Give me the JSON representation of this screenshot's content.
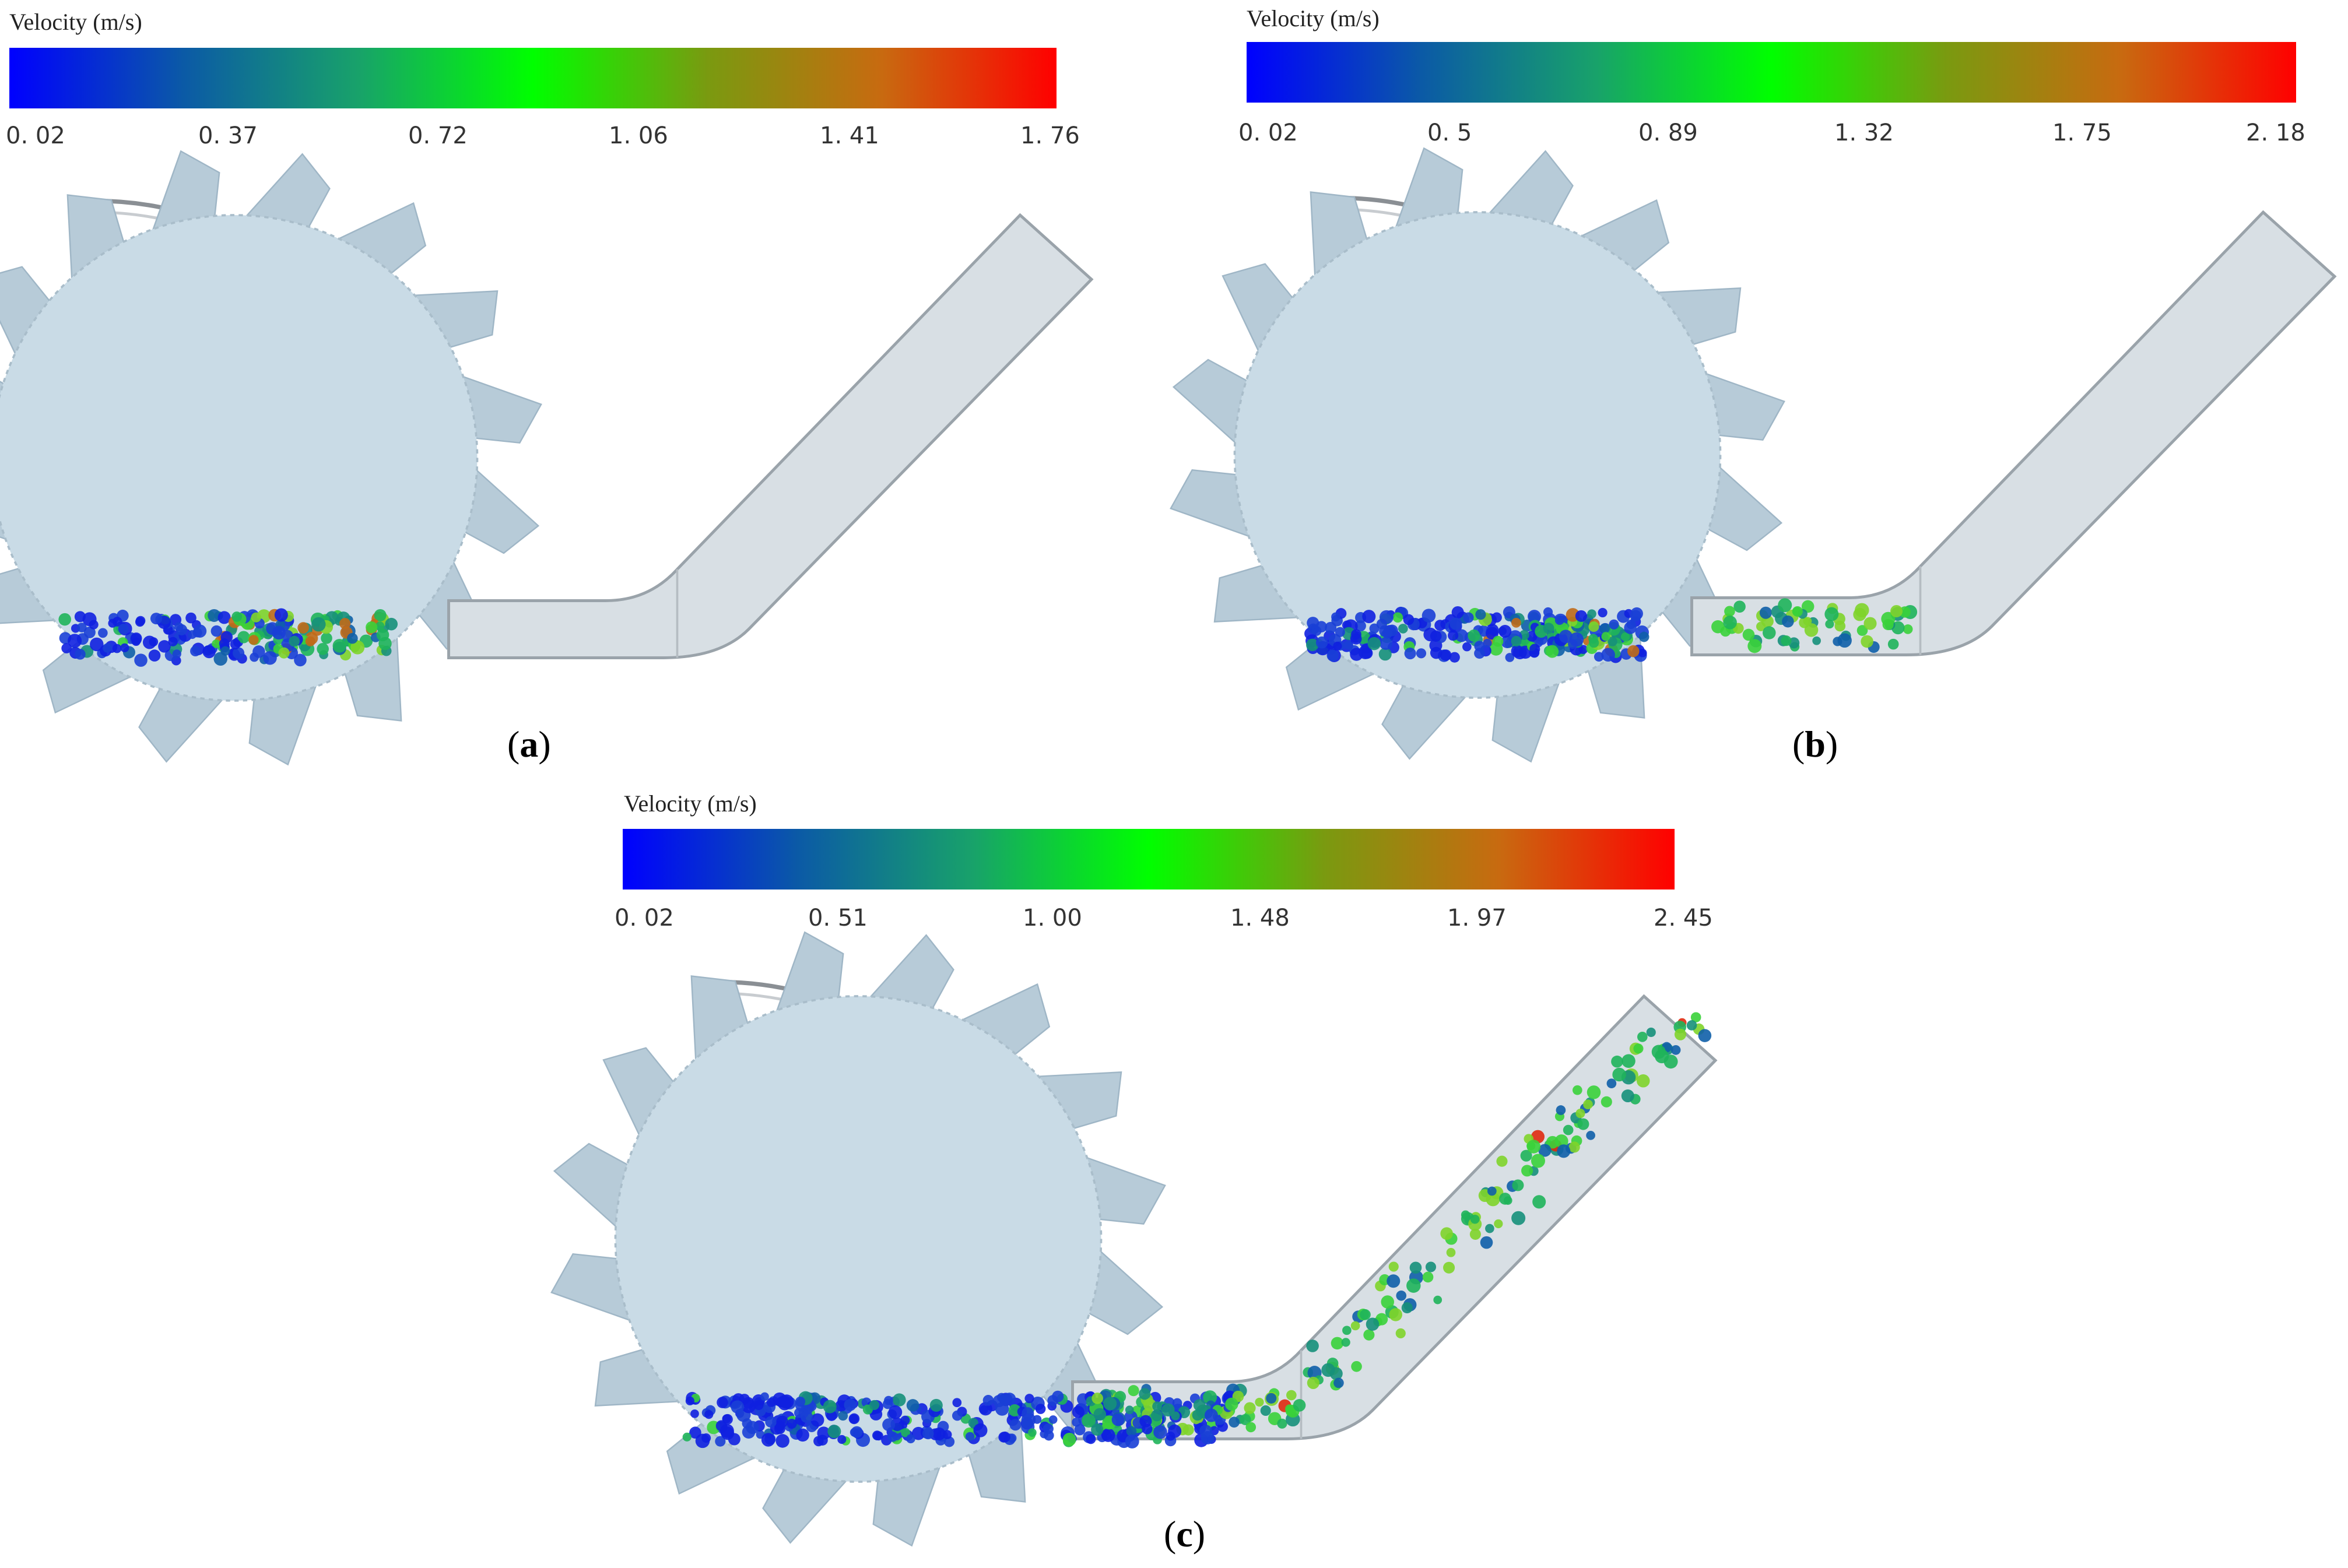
{
  "legend_title": "Velocity (m/s)",
  "colormap": [
    "#0000ff",
    "#0b5aa6",
    "#18a26a",
    "#00ff00",
    "#7a9a10",
    "#c86a10",
    "#ff0000"
  ],
  "wheel_color": "#c9dbe6",
  "pipe_color": "#d8dfe4",
  "panels": [
    {
      "id": "a",
      "caption_open": "(",
      "caption_letter": "a",
      "caption_close": ")",
      "ticks": [
        "0. 02",
        "0. 37",
        "0. 72",
        "1. 06",
        "1. 41",
        "1. 76"
      ],
      "particle_fill": 0.18
    },
    {
      "id": "b",
      "caption_open": "(",
      "caption_letter": "b",
      "caption_close": ")",
      "ticks": [
        "0. 02",
        "0. 5",
        "0. 89",
        "1. 32",
        "1. 75",
        "2. 18"
      ],
      "particle_fill": 0.45
    },
    {
      "id": "c",
      "caption_open": "(",
      "caption_letter": "c",
      "caption_close": ")",
      "ticks": [
        "0. 02",
        "0. 51",
        "1. 00",
        "1. 48",
        "1. 97",
        "2. 45"
      ],
      "particle_fill": 1.0
    }
  ]
}
